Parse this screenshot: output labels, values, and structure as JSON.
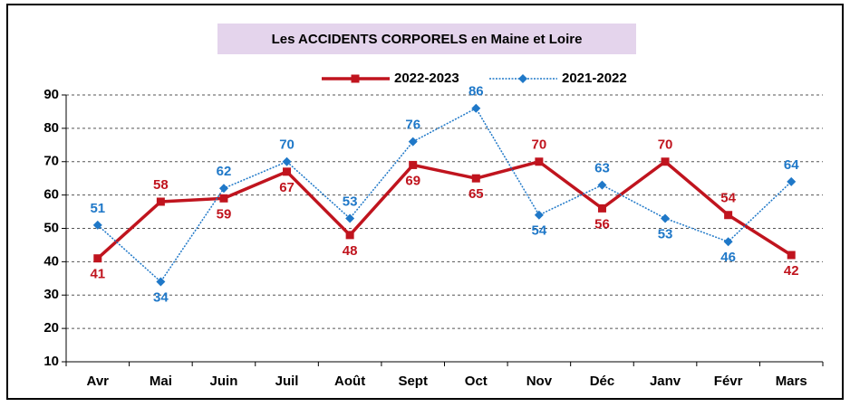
{
  "chart_data": {
    "type": "line",
    "title": "Les ACCIDENTS CORPORELS en Maine et Loire",
    "categories": [
      "Avr",
      "Mai",
      "Juin",
      "Juil",
      "Août",
      "Sept",
      "Oct",
      "Nov",
      "Déc",
      "Janv",
      "Févr",
      "Mars"
    ],
    "series": [
      {
        "name": "2022-2023",
        "color": "#c0141e",
        "marker": "square",
        "values": [
          41,
          58,
          59,
          67,
          48,
          69,
          65,
          70,
          56,
          70,
          54,
          42
        ]
      },
      {
        "name": "2021-2022",
        "color": "#1f78c8",
        "marker": "diamond",
        "values": [
          51,
          34,
          62,
          70,
          53,
          76,
          86,
          54,
          63,
          53,
          46,
          64
        ]
      }
    ],
    "ylim": [
      10,
      90
    ],
    "yticks": [
      10,
      20,
      30,
      40,
      50,
      60,
      70,
      80,
      90
    ],
    "grid": true,
    "legend": "top"
  }
}
